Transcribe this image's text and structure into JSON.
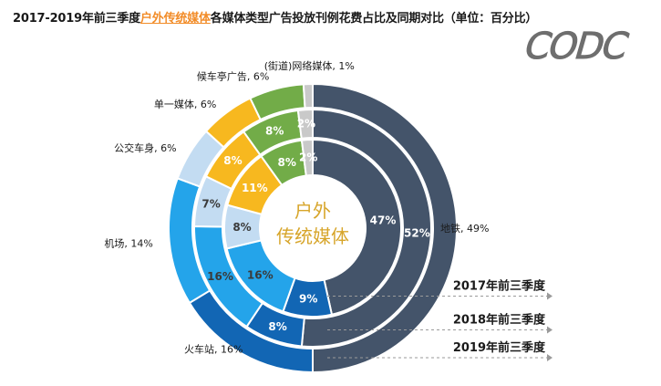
{
  "title": {
    "prefix": "2017-2019年前三季度",
    "highlight": "户外传统媒体",
    "suffix": "各媒体类型广告投放刊例花费占比及同期对比（单位：百分比）"
  },
  "logo_text": "CODC",
  "chart_data": {
    "type": "donut",
    "title": "2017-2019年前三季度户外传统媒体各媒体类型广告投放刊例花费占比及同期对比（单位：百分比）",
    "unit": "%",
    "center_label": [
      "户外",
      "传统媒体"
    ],
    "categories": [
      "地铁",
      "火车站",
      "机场",
      "公交车身",
      "单一媒体",
      "候车亭广告",
      "(街道)网络媒体"
    ],
    "colors": [
      "#44546a",
      "#1266b4",
      "#24a4ea",
      "#c3dcf2",
      "#f7b81f",
      "#72ac48",
      "#c9c9c9"
    ],
    "outer_labels": [
      "地铁, 49%",
      "火车站, 16%",
      "机场, 14%",
      "公交车身, 6%",
      "单一媒体, 6%",
      "候车亭广告, 6%",
      "(街道)网络媒体, 1%"
    ],
    "series": [
      {
        "name": "2017年前三季度",
        "values": [
          47,
          9,
          16,
          8,
          11,
          8,
          2
        ]
      },
      {
        "name": "2018年前三季度",
        "values": [
          52,
          8,
          16,
          7,
          8,
          8,
          2
        ]
      },
      {
        "name": "2019年前三季度",
        "values": [
          49,
          16,
          14,
          6,
          6,
          6,
          1
        ]
      }
    ],
    "ring_value_labels": [
      [
        "47%",
        "9%",
        "16%",
        "8%",
        "11%",
        "8%",
        "2%"
      ],
      [
        "52%",
        "8%",
        "16%",
        "7%",
        "8%",
        "8%",
        "2%"
      ],
      [
        "",
        "",
        "",
        "",
        "",
        "",
        ""
      ]
    ]
  }
}
